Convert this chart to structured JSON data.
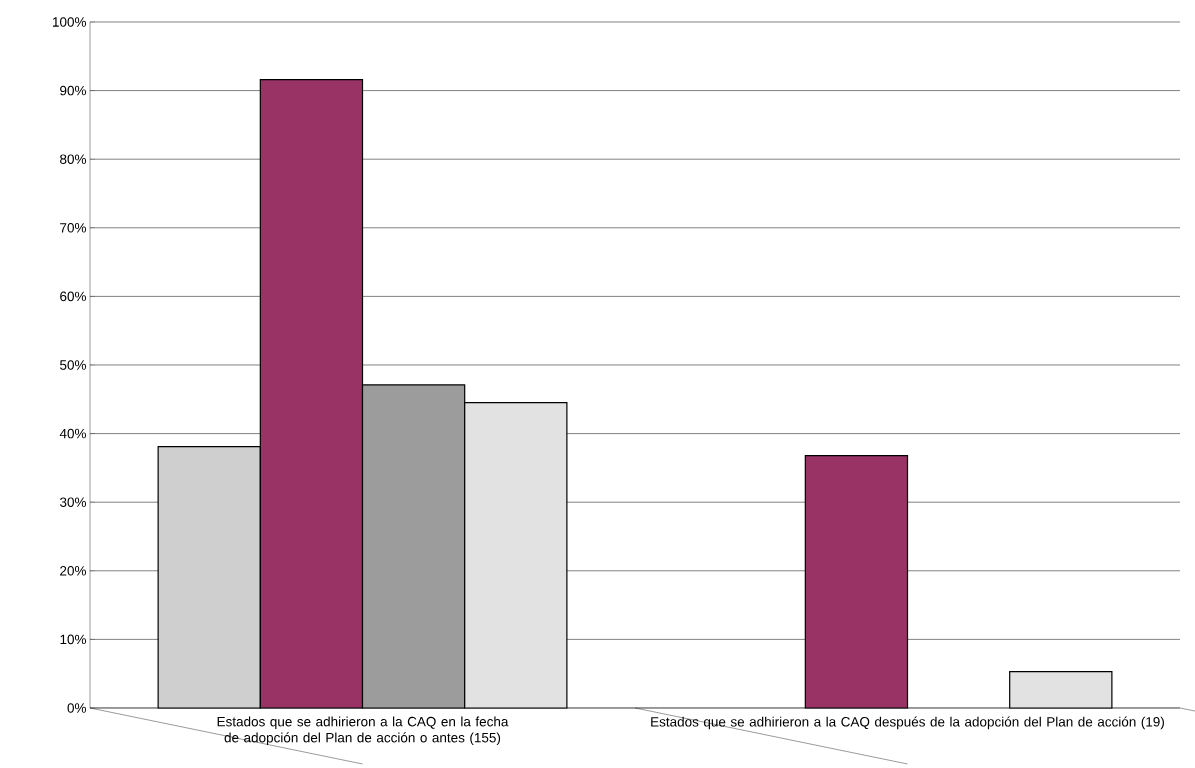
{
  "chart_data": {
    "type": "bar",
    "categories": [
      "Estados que se adhirieron a la CAQ en la fecha de adopción del Plan de acción o antes (155)",
      "Estados que se adhirieron a la CAQ después de la adopción del Plan de acción  (19)"
    ],
    "series": [
      {
        "color": "#cfcfcf",
        "values": [
          38.1,
          null
        ]
      },
      {
        "color": "#993366",
        "values": [
          91.6,
          36.8
        ]
      },
      {
        "color": "#9c9c9c",
        "values": [
          47.1,
          null
        ]
      },
      {
        "color": "#e2e2e2",
        "values": [
          44.5,
          5.3
        ]
      }
    ],
    "ylim": [
      0,
      100
    ],
    "yticks": [
      {
        "value": 0,
        "label": "0%"
      },
      {
        "value": 10,
        "label": "10%"
      },
      {
        "value": 20,
        "label": "20%"
      },
      {
        "value": 30,
        "label": "30%"
      },
      {
        "value": 40,
        "label": "40%"
      },
      {
        "value": 50,
        "label": "50%"
      },
      {
        "value": 60,
        "label": "60%"
      },
      {
        "value": 70,
        "label": "70%"
      },
      {
        "value": 80,
        "label": "80%"
      },
      {
        "value": 90,
        "label": "90%"
      },
      {
        "value": 100,
        "label": "100%"
      }
    ],
    "grid": "y"
  }
}
